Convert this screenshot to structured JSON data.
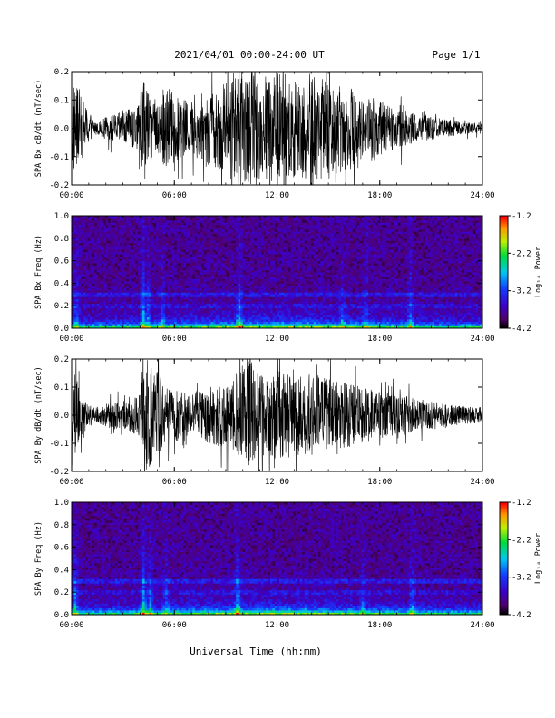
{
  "header": {
    "title": "2021/04/01  00:00-24:00 UT",
    "page": "Page 1/1"
  },
  "footer": {
    "xlabel": "Universal Time (hh:mm)"
  },
  "colorbar": {
    "label": "Log₁₀ Power",
    "ticks": [
      "-1.2",
      "-2.2",
      "-3.2",
      "-4.2"
    ],
    "tick_values": [
      -1.2,
      -2.2,
      -3.2,
      -4.2
    ],
    "range": [
      -4.2,
      -1.2
    ]
  },
  "chart_data": [
    {
      "type": "line",
      "name": "bx-timeseries",
      "title": "",
      "xlabel": "",
      "ylabel": "SPA Bx dB/dt (nT/sec)",
      "xlim": [
        0,
        24
      ],
      "ylim": [
        -0.2,
        0.2
      ],
      "xticks": [
        "00:00",
        "06:00",
        "12:00",
        "18:00",
        "24:00"
      ],
      "xtick_values": [
        0,
        6,
        12,
        18,
        24
      ],
      "yticks": [
        "0.2",
        "0.1",
        "0.0",
        "-0.1",
        "-0.2"
      ],
      "ytick_values": [
        0.2,
        0.1,
        0.0,
        -0.1,
        -0.2
      ],
      "series": [
        {
          "x": [
            0,
            1,
            1.5,
            2,
            2.5,
            3,
            3.5,
            4,
            4.2,
            4.5,
            5,
            5.5,
            6,
            6.5,
            7,
            7.5,
            8,
            8.5,
            9,
            9.5,
            10,
            10.5,
            11,
            11.5,
            12,
            12.5,
            13,
            13.5,
            14,
            14.5,
            15,
            15.5,
            16,
            16.5,
            17,
            17.5,
            18,
            18.5,
            19,
            19.5,
            20,
            21,
            22,
            23,
            24
          ],
          "amplitude": [
            0.18,
            0.06,
            0.02,
            0.04,
            0.05,
            0.06,
            0.07,
            0.09,
            0.2,
            0.12,
            0.1,
            0.16,
            0.12,
            0.1,
            0.1,
            0.11,
            0.13,
            0.14,
            0.17,
            0.2,
            0.2,
            0.2,
            0.18,
            0.2,
            0.2,
            0.2,
            0.19,
            0.18,
            0.2,
            0.18,
            0.17,
            0.16,
            0.15,
            0.14,
            0.1,
            0.12,
            0.1,
            0.08,
            0.07,
            0.07,
            0.05,
            0.04,
            0.03,
            0.02,
            0.02
          ]
        }
      ]
    },
    {
      "type": "heatmap",
      "name": "bx-spectrogram",
      "title": "",
      "xlabel": "",
      "ylabel": "SPA Bx Freq (Hz)",
      "xlim": [
        0,
        24
      ],
      "ylim": [
        0,
        1.0
      ],
      "xticks": [
        "00:00",
        "06:00",
        "12:00",
        "18:00",
        "24:00"
      ],
      "xtick_values": [
        0,
        6,
        12,
        18,
        24
      ],
      "yticks": [
        "1.0",
        "0.8",
        "0.6",
        "0.4",
        "0.2",
        "0.0"
      ],
      "ytick_values": [
        1.0,
        0.8,
        0.6,
        0.4,
        0.2,
        0.0
      ],
      "colorbar_range": [
        -4.2,
        -1.2
      ],
      "bursts": [
        {
          "t": 0.3,
          "strength": 0.7
        },
        {
          "t": 4.2,
          "strength": 1.0
        },
        {
          "t": 4.5,
          "strength": 0.7
        },
        {
          "t": 5.3,
          "strength": 0.6
        },
        {
          "t": 9.8,
          "strength": 0.9
        },
        {
          "t": 15.8,
          "strength": 0.5
        },
        {
          "t": 17.2,
          "strength": 0.5
        },
        {
          "t": 19.8,
          "strength": 0.7
        }
      ]
    },
    {
      "type": "line",
      "name": "by-timeseries",
      "title": "",
      "xlabel": "",
      "ylabel": "SPA By dB/dt (nT/sec)",
      "xlim": [
        0,
        24
      ],
      "ylim": [
        -0.2,
        0.2
      ],
      "xticks": [
        "00:00",
        "06:00",
        "12:00",
        "18:00",
        "24:00"
      ],
      "xtick_values": [
        0,
        6,
        12,
        18,
        24
      ],
      "yticks": [
        "0.2",
        "0.1",
        "0.0",
        "-0.1",
        "-0.2"
      ],
      "ytick_values": [
        0.2,
        0.1,
        0.0,
        -0.1,
        -0.2
      ],
      "series": [
        {
          "x": [
            0,
            0.5,
            1,
            1.5,
            2,
            2.5,
            3,
            3.5,
            4,
            4.2,
            4.5,
            5,
            5.5,
            6,
            6.5,
            7,
            7.5,
            8,
            8.5,
            9,
            9.5,
            10,
            10.5,
            11,
            11.5,
            12,
            12.5,
            13,
            13.5,
            14,
            14.5,
            15,
            15.5,
            16,
            16.5,
            17,
            17.5,
            18,
            18.5,
            19,
            19.5,
            20,
            21,
            22,
            23,
            24
          ],
          "amplitude": [
            0.2,
            0.08,
            0.04,
            0.03,
            0.04,
            0.05,
            0.05,
            0.06,
            0.09,
            0.2,
            0.2,
            0.16,
            0.1,
            0.1,
            0.08,
            0.08,
            0.09,
            0.1,
            0.11,
            0.12,
            0.14,
            0.18,
            0.2,
            0.15,
            0.14,
            0.16,
            0.15,
            0.15,
            0.14,
            0.15,
            0.14,
            0.13,
            0.12,
            0.12,
            0.11,
            0.1,
            0.1,
            0.09,
            0.08,
            0.07,
            0.07,
            0.06,
            0.05,
            0.04,
            0.03,
            0.03
          ]
        }
      ]
    },
    {
      "type": "heatmap",
      "name": "by-spectrogram",
      "title": "",
      "xlabel": "",
      "ylabel": "SPA By Freq (Hz)",
      "xlim": [
        0,
        24
      ],
      "ylim": [
        0,
        1.0
      ],
      "xticks": [
        "00:00",
        "06:00",
        "12:00",
        "18:00",
        "24:00"
      ],
      "xtick_values": [
        0,
        6,
        12,
        18,
        24
      ],
      "yticks": [
        "1.0",
        "0.8",
        "0.6",
        "0.4",
        "0.2",
        "0.0"
      ],
      "ytick_values": [
        1.0,
        0.8,
        0.6,
        0.4,
        0.2,
        0.0
      ],
      "colorbar_range": [
        -4.2,
        -1.2
      ],
      "bursts": [
        {
          "t": 0.2,
          "strength": 0.8
        },
        {
          "t": 4.2,
          "strength": 1.0
        },
        {
          "t": 4.6,
          "strength": 0.7
        },
        {
          "t": 5.5,
          "strength": 0.6
        },
        {
          "t": 9.7,
          "strength": 0.9
        },
        {
          "t": 17.0,
          "strength": 0.5
        },
        {
          "t": 19.9,
          "strength": 0.7
        }
      ]
    }
  ]
}
